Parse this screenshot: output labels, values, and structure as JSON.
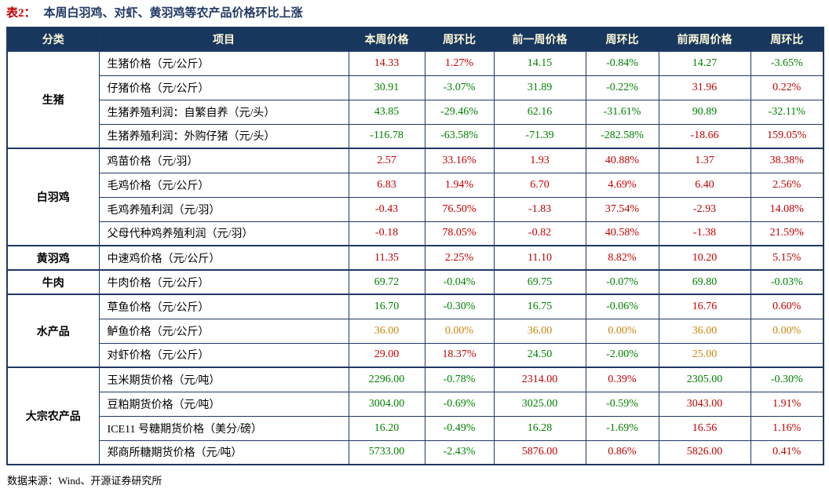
{
  "title": {
    "prefix": "表2：",
    "text": "本周白羽鸡、对虾、黄羽鸡等农产品价格环比上涨"
  },
  "columns": [
    "分类",
    "项目",
    "本周价格",
    "周环比",
    "前一周价格",
    "周环比",
    "前两周价格",
    "周环比"
  ],
  "groups": [
    {
      "category": "生猪",
      "rows": [
        {
          "item": "生猪价格（元/公斤）",
          "values": [
            [
              "14.33",
              "up"
            ],
            [
              "1.27%",
              "up"
            ],
            [
              "14.15",
              "down"
            ],
            [
              "-0.84%",
              "down"
            ],
            [
              "14.27",
              "down"
            ],
            [
              "-3.65%",
              "down"
            ]
          ]
        },
        {
          "item": "仔猪价格（元/公斤）",
          "values": [
            [
              "30.91",
              "down"
            ],
            [
              "-3.07%",
              "down"
            ],
            [
              "31.89",
              "down"
            ],
            [
              "-0.22%",
              "down"
            ],
            [
              "31.96",
              "up"
            ],
            [
              "0.22%",
              "up"
            ]
          ]
        },
        {
          "item": "生猪养殖利润：自繁自养（元/头）",
          "values": [
            [
              "43.85",
              "down"
            ],
            [
              "-29.46%",
              "down"
            ],
            [
              "62.16",
              "down"
            ],
            [
              "-31.61%",
              "down"
            ],
            [
              "90.89",
              "down"
            ],
            [
              "-32.11%",
              "down"
            ]
          ]
        },
        {
          "item": "生猪养殖利润：外购仔猪（元/头）",
          "values": [
            [
              "-116.78",
              "down"
            ],
            [
              "-63.58%",
              "down"
            ],
            [
              "-71.39",
              "down"
            ],
            [
              "-282.58%",
              "down"
            ],
            [
              "-18.66",
              "up"
            ],
            [
              "159.05%",
              "up"
            ]
          ]
        }
      ]
    },
    {
      "category": "白羽鸡",
      "rows": [
        {
          "item": "鸡苗价格（元/羽）",
          "values": [
            [
              "2.57",
              "up"
            ],
            [
              "33.16%",
              "up"
            ],
            [
              "1.93",
              "up"
            ],
            [
              "40.88%",
              "up"
            ],
            [
              "1.37",
              "up"
            ],
            [
              "38.38%",
              "up"
            ]
          ]
        },
        {
          "item": "毛鸡价格（元/公斤）",
          "values": [
            [
              "6.83",
              "up"
            ],
            [
              "1.94%",
              "up"
            ],
            [
              "6.70",
              "up"
            ],
            [
              "4.69%",
              "up"
            ],
            [
              "6.40",
              "up"
            ],
            [
              "2.56%",
              "up"
            ]
          ]
        },
        {
          "item": "毛鸡养殖利润（元/羽）",
          "values": [
            [
              "-0.43",
              "up"
            ],
            [
              "76.50%",
              "up"
            ],
            [
              "-1.83",
              "up"
            ],
            [
              "37.54%",
              "up"
            ],
            [
              "-2.93",
              "up"
            ],
            [
              "14.08%",
              "up"
            ]
          ]
        },
        {
          "item": "父母代种鸡养殖利润（元/羽）",
          "values": [
            [
              "-0.18",
              "up"
            ],
            [
              "78.05%",
              "up"
            ],
            [
              "-0.82",
              "up"
            ],
            [
              "40.58%",
              "up"
            ],
            [
              "-1.38",
              "up"
            ],
            [
              "21.59%",
              "up"
            ]
          ]
        }
      ]
    },
    {
      "category": "黄羽鸡",
      "rows": [
        {
          "item": "中速鸡价格（元/公斤）",
          "values": [
            [
              "11.35",
              "up"
            ],
            [
              "2.25%",
              "up"
            ],
            [
              "11.10",
              "up"
            ],
            [
              "8.82%",
              "up"
            ],
            [
              "10.20",
              "up"
            ],
            [
              "5.15%",
              "up"
            ]
          ]
        }
      ]
    },
    {
      "category": "牛肉",
      "rows": [
        {
          "item": "牛肉价格（元/公斤）",
          "values": [
            [
              "69.72",
              "down"
            ],
            [
              "-0.04%",
              "down"
            ],
            [
              "69.75",
              "down"
            ],
            [
              "-0.07%",
              "down"
            ],
            [
              "69.80",
              "down"
            ],
            [
              "-0.03%",
              "down"
            ]
          ]
        }
      ]
    },
    {
      "category": "水产品",
      "rows": [
        {
          "item": "草鱼价格（元/公斤）",
          "values": [
            [
              "16.70",
              "down"
            ],
            [
              "-0.30%",
              "down"
            ],
            [
              "16.75",
              "down"
            ],
            [
              "-0.06%",
              "down"
            ],
            [
              "16.76",
              "up"
            ],
            [
              "0.60%",
              "up"
            ]
          ]
        },
        {
          "item": "鲈鱼价格（元/公斤）",
          "values": [
            [
              "36.00",
              "flat"
            ],
            [
              "0.00%",
              "flat"
            ],
            [
              "36.00",
              "flat"
            ],
            [
              "0.00%",
              "flat"
            ],
            [
              "36.00",
              "flat"
            ],
            [
              "0.00%",
              "flat"
            ]
          ]
        },
        {
          "item": "对虾价格（元/公斤）",
          "values": [
            [
              "29.00",
              "up"
            ],
            [
              "18.37%",
              "up"
            ],
            [
              "24.50",
              "down"
            ],
            [
              "-2.00%",
              "down"
            ],
            [
              "25.00",
              "flat"
            ],
            [
              "",
              "flat"
            ]
          ]
        }
      ]
    },
    {
      "category": "大宗农产品",
      "rows": [
        {
          "item": "玉米期货价格（元/吨）",
          "values": [
            [
              "2296.00",
              "down"
            ],
            [
              "-0.78%",
              "down"
            ],
            [
              "2314.00",
              "up"
            ],
            [
              "0.39%",
              "up"
            ],
            [
              "2305.00",
              "down"
            ],
            [
              "-0.30%",
              "down"
            ]
          ]
        },
        {
          "item": "豆粕期货价格（元/吨）",
          "values": [
            [
              "3004.00",
              "down"
            ],
            [
              "-0.69%",
              "down"
            ],
            [
              "3025.00",
              "down"
            ],
            [
              "-0.59%",
              "down"
            ],
            [
              "3043.00",
              "up"
            ],
            [
              "1.91%",
              "up"
            ]
          ]
        },
        {
          "item": "ICE11 号糖期货价格（美分/磅）",
          "values": [
            [
              "16.20",
              "down"
            ],
            [
              "-0.49%",
              "down"
            ],
            [
              "16.28",
              "down"
            ],
            [
              "-1.69%",
              "down"
            ],
            [
              "16.56",
              "up"
            ],
            [
              "1.16%",
              "up"
            ]
          ]
        },
        {
          "item": "郑商所糖期货价格（元/吨）",
          "values": [
            [
              "5733.00",
              "down"
            ],
            [
              "-2.43%",
              "down"
            ],
            [
              "5876.00",
              "up"
            ],
            [
              "0.86%",
              "up"
            ],
            [
              "5826.00",
              "up"
            ],
            [
              "0.41%",
              "up"
            ]
          ]
        }
      ]
    }
  ],
  "footer": "数据来源：Wind、开源证券研究所",
  "colors": {
    "up": "#C00000",
    "down": "#008000",
    "flat": "#C8860A",
    "header_bg": "#17375E",
    "header_text": "#FFF9D9",
    "border": "#1F3864",
    "title_blue": "#1F3864",
    "title_red": "#C00000"
  }
}
